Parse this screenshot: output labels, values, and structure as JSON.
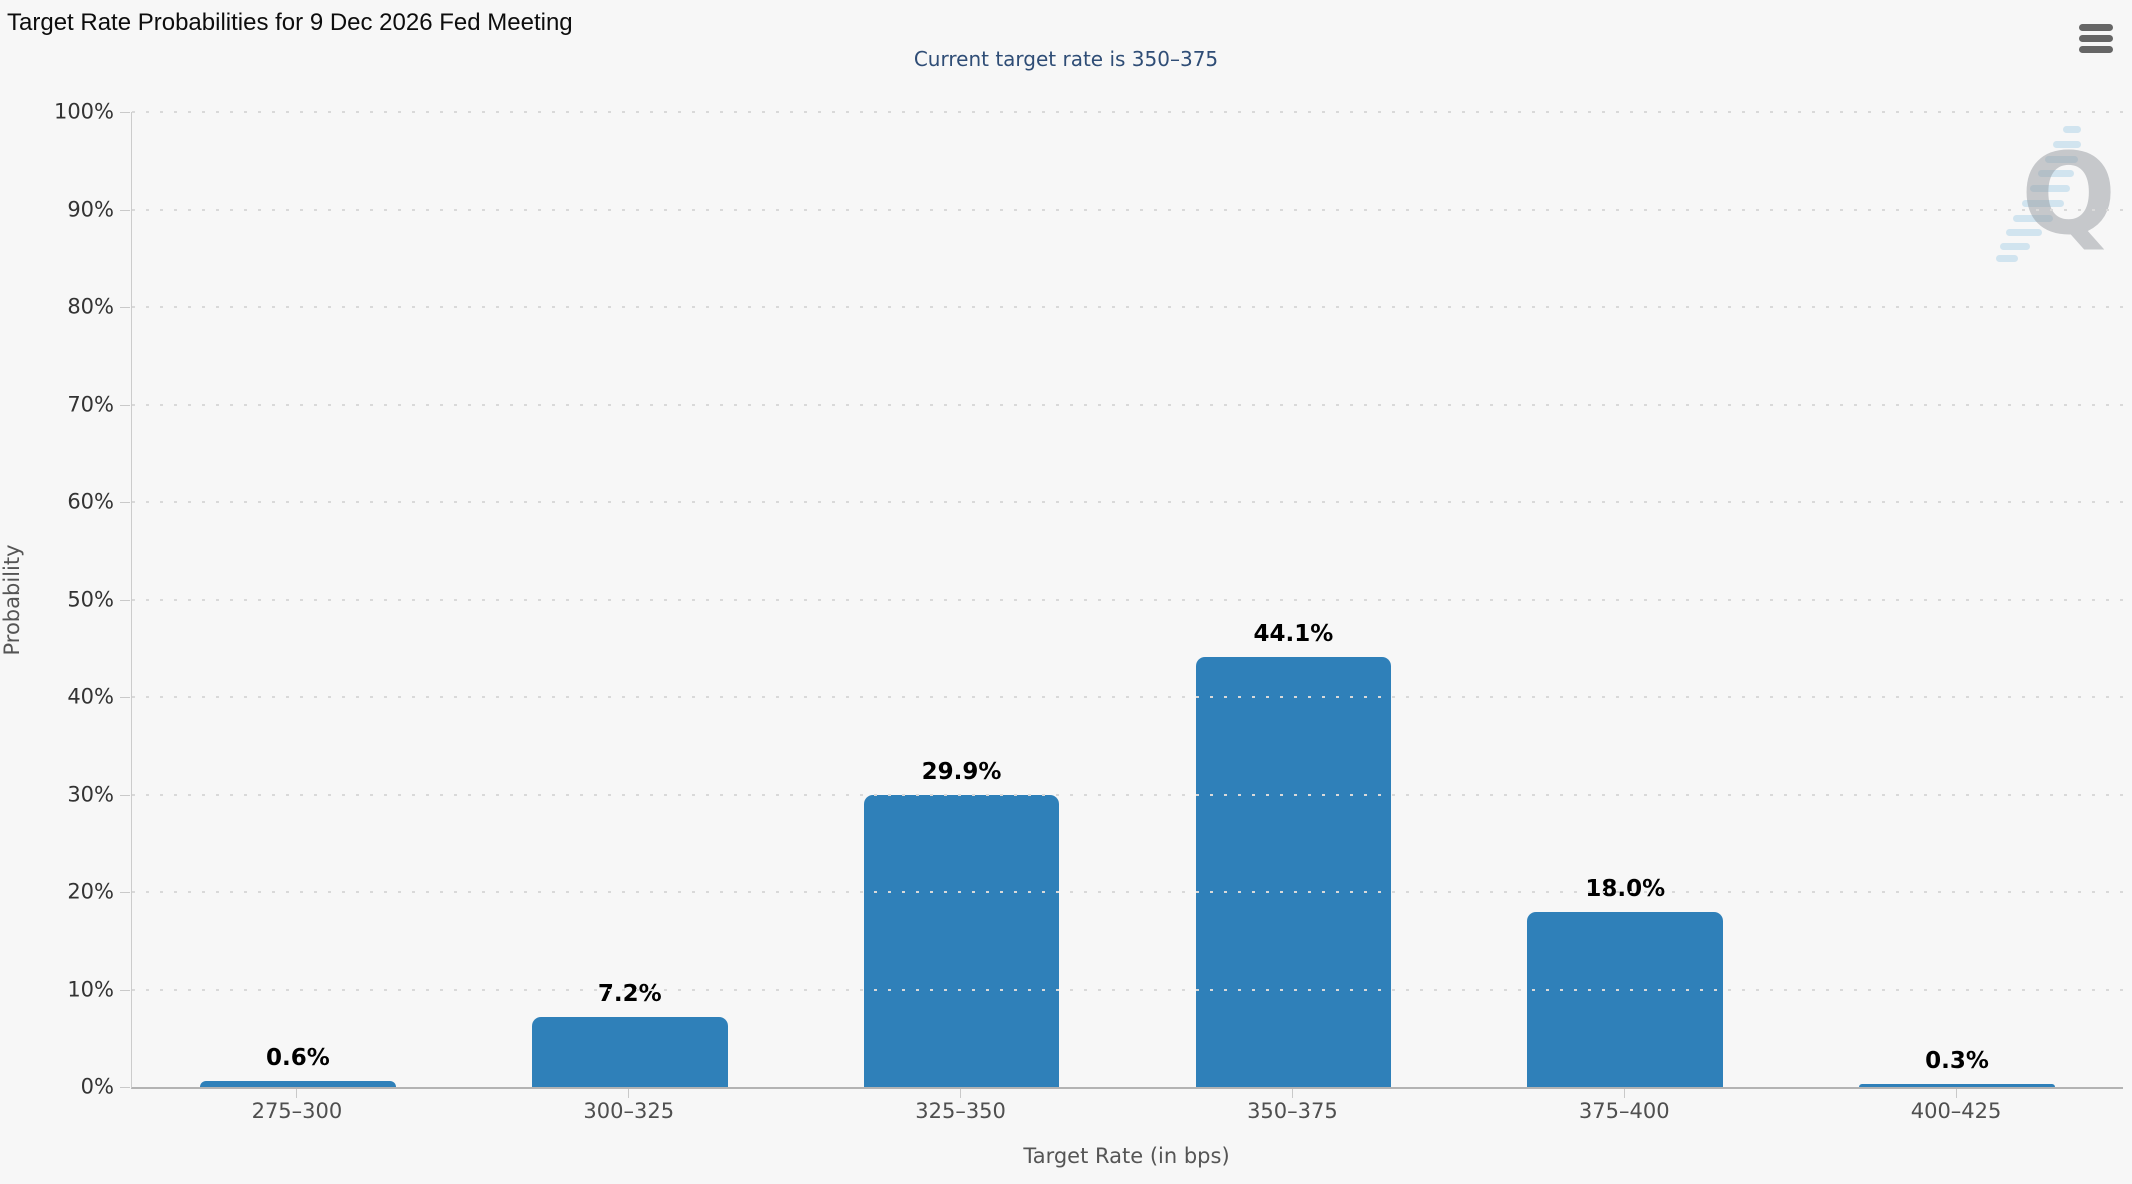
{
  "page": {
    "title": "Target Rate Probabilities for 9 Dec 2026 Fed Meeting",
    "subtitle": "Current target rate is 350–375"
  },
  "chart_data": {
    "type": "bar",
    "title": "Target Rate Probabilities for 9 Dec 2026 Fed Meeting",
    "subtitle": "Current target rate is 350–375",
    "categories": [
      "275–300",
      "300–325",
      "325–350",
      "350–375",
      "375–400",
      "400–425"
    ],
    "values": [
      0.6,
      7.2,
      29.9,
      44.1,
      18.0,
      0.3
    ],
    "value_labels": [
      "0.6%",
      "7.2%",
      "29.9%",
      "44.1%",
      "18.0%",
      "0.3%"
    ],
    "xlabel": "Target Rate (in bps)",
    "ylabel": "Probability",
    "ylim": [
      0,
      100
    ],
    "ytick_step": 10,
    "ytick_suffix": "%",
    "grid": "horizontal dotted",
    "legend": "none",
    "bar_color": "#2f80b9",
    "watermark_letter": "Q"
  },
  "colors": {
    "background": "#f7f7f7",
    "bar": "#2f80b9",
    "title_text": "#0d0d0d",
    "subtitle_text": "#2f4d76",
    "y_label_text": "#333333",
    "x_label_text": "#4f4f4f",
    "axis_title_text": "#555555",
    "grid_dot": "#d9d9d9",
    "x_axis_line": "#b3b3b3",
    "y_axis_line": "#cccccc",
    "menu_icon": "#666666"
  },
  "icons": {
    "menu": "hamburger-icon"
  }
}
